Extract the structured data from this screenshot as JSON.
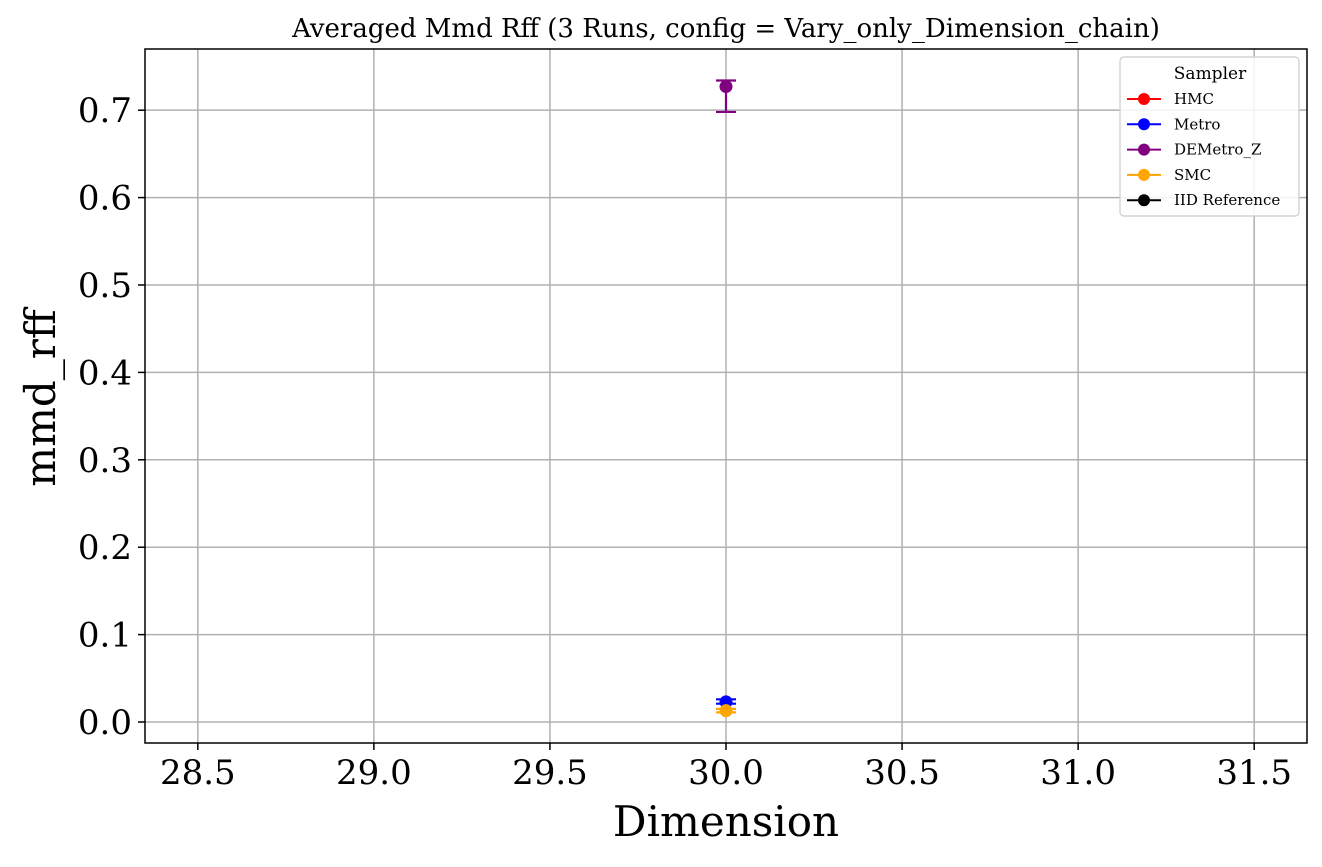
{
  "chart_data": {
    "type": "scatter",
    "title": "Averaged Mmd Rff (3 Runs, config = Vary_only_Dimension_chain)",
    "xlabel": "Dimension",
    "ylabel": "mmd_rff",
    "xlim": [
      28.35,
      31.65
    ],
    "ylim": [
      -0.024,
      0.77
    ],
    "xticks": [
      28.5,
      29.0,
      29.5,
      30.0,
      30.5,
      31.0,
      31.5
    ],
    "xtick_labels": [
      "28.5",
      "29.0",
      "29.5",
      "30.0",
      "30.5",
      "31.0",
      "31.5"
    ],
    "yticks": [
      0.0,
      0.1,
      0.2,
      0.3,
      0.4,
      0.5,
      0.6,
      0.7
    ],
    "ytick_labels": [
      "0.0",
      "0.1",
      "0.2",
      "0.3",
      "0.4",
      "0.5",
      "0.6",
      "0.7"
    ],
    "grid": true,
    "legend": {
      "title": "Sampler",
      "position": "top-right",
      "entries": [
        {
          "name": "HMC",
          "color": "#ff0000"
        },
        {
          "name": "Metro",
          "color": "#0000ff"
        },
        {
          "name": "DEMetro_Z",
          "color": "#800080"
        },
        {
          "name": "SMC",
          "color": "#ffa500"
        },
        {
          "name": "IID Reference",
          "color": "#000000"
        }
      ]
    },
    "series": [
      {
        "name": "DEMetro_Z",
        "color": "#800080",
        "points": [
          {
            "x": 30.0,
            "y": 0.727,
            "err_low": 0.698,
            "err_high": 0.734
          }
        ]
      },
      {
        "name": "Metro",
        "color": "#0000ff",
        "points": [
          {
            "x": 30.0,
            "y": 0.023,
            "err_low": 0.021,
            "err_high": 0.026
          }
        ]
      },
      {
        "name": "SMC",
        "color": "#ffa500",
        "points": [
          {
            "x": 30.0,
            "y": 0.013,
            "err_low": 0.011,
            "err_high": 0.015
          }
        ]
      }
    ]
  }
}
